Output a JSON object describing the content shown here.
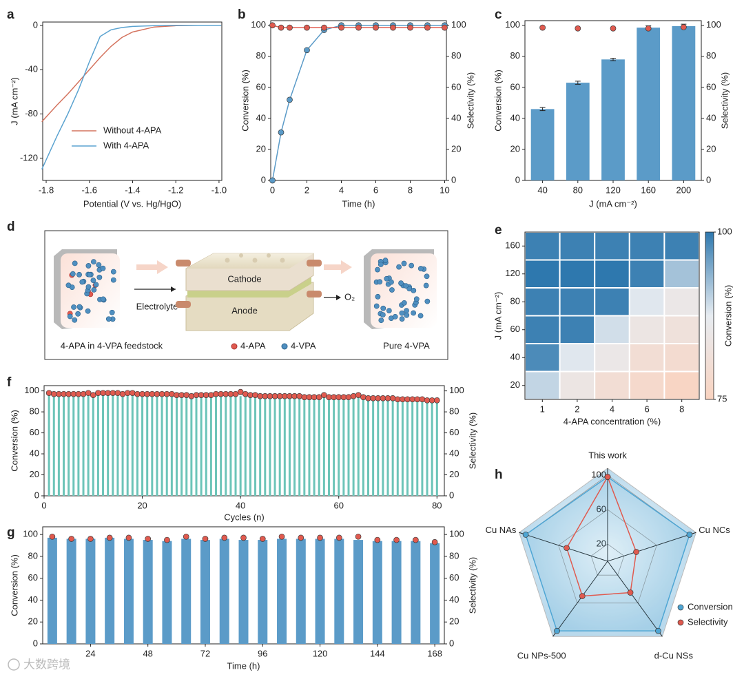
{
  "chart_data": [
    {
      "type": "line",
      "label": "a",
      "xlabel": "Potential (V vs. Hg/HgO)",
      "ylabel": "J (mA cm⁻²)",
      "x": [
        -1.82,
        -1.75,
        -1.7,
        -1.65,
        -1.6,
        -1.55,
        -1.5,
        -1.45,
        -1.4,
        -1.3,
        -1.2,
        -1.1,
        -1.0,
        -0.99
      ],
      "series": [
        {
          "name": "Without 4-APA",
          "color": "#d4735e",
          "values": [
            -87,
            -72,
            -62,
            -51,
            -40,
            -29,
            -19,
            -11,
            -6,
            -1.5,
            -0.3,
            0,
            0,
            0
          ]
        },
        {
          "name": "With 4-APA",
          "color": "#5ba3d0",
          "values": [
            -130,
            -100,
            -80,
            -58,
            -33,
            -10,
            -4,
            -2,
            -1,
            -0.3,
            0,
            0,
            0,
            0
          ]
        }
      ],
      "xlim": [
        -1.816,
        -0.987
      ],
      "xticks": [
        -1.8,
        -1.6,
        -1.4,
        -1.2,
        {
          "value": -1.0,
          "label": "-1.0"
        }
      ],
      "ylim": [
        -140,
        3
      ],
      "yticks": [
        0,
        -40,
        -80,
        -120
      ],
      "legend": "lower-center"
    },
    {
      "type": "line",
      "label": "b",
      "xlabel": "Time (h)",
      "ylabel": "Conversion (%)",
      "y2label": "Selectivity (%)",
      "x": [
        0,
        0.5,
        1,
        2,
        3,
        4,
        5,
        6,
        7,
        8,
        9,
        10
      ],
      "series": [
        {
          "color": "#5b9bc8",
          "axis": "y",
          "values": [
            0,
            31,
            52,
            84,
            97,
            100,
            100,
            100,
            100,
            100,
            100,
            100
          ]
        },
        {
          "color": "#e05a4f",
          "axis": "y2",
          "values": [
            100,
            98.5,
            98.5,
            98.5,
            98.5,
            98.5,
            98.5,
            98.5,
            98.5,
            98.5,
            98.5,
            98.5
          ]
        }
      ],
      "markers": true,
      "xlim": [
        -0.1,
        10.1
      ],
      "xticks": [
        0,
        2,
        4,
        6,
        8,
        10
      ],
      "ylim": [
        0,
        103
      ],
      "yticks": [
        0,
        20,
        40,
        60,
        80,
        100
      ],
      "y2lim": [
        0,
        103
      ],
      "y2ticks": [
        0,
        20,
        40,
        60,
        80,
        100
      ]
    },
    {
      "type": "bar",
      "label": "c",
      "xlabel": "J (mA cm⁻²)",
      "ylabel": "Conversion (%)",
      "y2label": "Selectivity (%)",
      "categories": [
        "40",
        "80",
        "120",
        "160",
        "200"
      ],
      "series": [
        {
          "kind": "bar",
          "color": "#5b9bc8",
          "axis": "y",
          "values": [
            46,
            63,
            78,
            98.5,
            99.5
          ],
          "errors": [
            1,
            1,
            0.8,
            1.2,
            1.2
          ]
        },
        {
          "kind": "scatter",
          "color": "#e05a4f",
          "axis": "y2",
          "values": [
            98.5,
            98,
            98,
            98,
            98.8
          ]
        }
      ],
      "ylim": [
        0,
        103
      ],
      "yticks": [
        0,
        20,
        40,
        60,
        80,
        100
      ],
      "y2lim": [
        0,
        103
      ],
      "y2ticks": [
        0,
        20,
        40,
        60,
        80,
        100
      ]
    },
    {
      "type": "heatmap",
      "label": "e",
      "xlabel": "4-APA concentration (%)",
      "ylabel": "J (mA cm⁻²)",
      "colorbar_label": "Conversion (%)",
      "categories": [
        "1",
        "2",
        "4",
        "6",
        "8"
      ],
      "ycategories": [
        "20",
        "40",
        "60",
        "80",
        "120",
        "160"
      ],
      "values": [
        [
          90,
          84,
          80,
          78,
          76
        ],
        [
          98,
          88,
          85,
          80,
          79
        ],
        [
          99,
          99,
          89,
          84,
          82
        ],
        [
          99,
          99,
          99,
          88,
          85
        ],
        [
          100,
          100,
          100,
          99,
          92
        ],
        [
          99,
          99,
          99,
          99,
          99
        ]
      ],
      "clim": [
        75,
        100
      ],
      "cticks": [
        75,
        100
      ],
      "colors": [
        "#f9d3c0",
        "#e7ecf1",
        "#2e78ae"
      ]
    },
    {
      "type": "bar",
      "label": "f",
      "xlabel": "Cycles (n)",
      "ylabel": "Conversion (%)",
      "y2label": "Selectivity (%)",
      "x": [
        1,
        2,
        3,
        4,
        5,
        6,
        7,
        8,
        9,
        10,
        11,
        12,
        13,
        14,
        15,
        16,
        17,
        18,
        19,
        20,
        21,
        22,
        23,
        24,
        25,
        26,
        27,
        28,
        29,
        30,
        31,
        32,
        33,
        34,
        35,
        36,
        37,
        38,
        39,
        40,
        41,
        42,
        43,
        44,
        45,
        46,
        47,
        48,
        49,
        50,
        51,
        52,
        53,
        54,
        55,
        56,
        57,
        58,
        59,
        60,
        61,
        62,
        63,
        64,
        65,
        66,
        67,
        68,
        69,
        70,
        71,
        72,
        73,
        74,
        75,
        76,
        77,
        78,
        79,
        80
      ],
      "series": [
        {
          "kind": "bar",
          "color": "#6cc4b8",
          "axis": "y",
          "values": [
            96,
            96,
            96,
            96,
            96,
            96,
            96,
            96,
            96,
            96,
            96,
            96,
            96,
            96,
            96,
            96,
            96,
            96,
            96,
            96,
            96,
            96,
            96,
            96,
            96,
            96,
            95,
            95,
            95,
            95,
            95,
            95,
            95,
            95,
            95,
            95,
            95,
            95,
            95,
            95,
            95,
            95,
            95,
            94,
            94,
            94,
            94,
            94,
            94,
            94,
            94,
            94,
            93,
            93,
            93,
            93,
            94,
            93,
            93,
            93,
            93,
            93,
            93,
            94,
            93,
            92,
            92,
            92,
            92,
            92,
            92,
            91,
            91,
            91,
            91,
            91,
            91,
            90,
            90,
            90
          ]
        },
        {
          "kind": "scatter",
          "color": "#e05a4f",
          "axis": "y2",
          "values": [
            98,
            97,
            97,
            97,
            97,
            97,
            97,
            97,
            98,
            96,
            98,
            98,
            98,
            98,
            98,
            97,
            98,
            98,
            97,
            97,
            97,
            97,
            97,
            97,
            97,
            97,
            96,
            96,
            96,
            95,
            96,
            96,
            96,
            96,
            97,
            97,
            97,
            97,
            97,
            99,
            97,
            96,
            96,
            95,
            95,
            95,
            95,
            95,
            95,
            95,
            95,
            95,
            94,
            94,
            94,
            94,
            96,
            94,
            94,
            94,
            94,
            94,
            95,
            96,
            94,
            93,
            93,
            93,
            93,
            93,
            93,
            92,
            92,
            92,
            92,
            92,
            92,
            91,
            91,
            91
          ]
        }
      ],
      "xlim": [
        0,
        81.5
      ],
      "xticks": [
        0,
        20,
        40,
        60,
        80
      ],
      "ylim": [
        0,
        105
      ],
      "yticks": [
        0,
        20,
        40,
        60,
        80,
        100
      ],
      "y2lim": [
        0,
        105
      ],
      "y2ticks": [
        0,
        20,
        40,
        60,
        80,
        100
      ]
    },
    {
      "type": "bar",
      "label": "g",
      "xlabel": "Time (h)",
      "ylabel": "Conversion (%)",
      "y2label": "Selectivity (%)",
      "x": [
        8,
        16,
        24,
        32,
        40,
        48,
        56,
        64,
        72,
        80,
        88,
        96,
        104,
        112,
        120,
        128,
        136,
        144,
        152,
        160,
        168
      ],
      "series": [
        {
          "kind": "bar",
          "color": "#5b9bc8",
          "axis": "y",
          "values": [
            97,
            96,
            96,
            97,
            96,
            95,
            94,
            96,
            95,
            96,
            95,
            95,
            96,
            96,
            96,
            96,
            95,
            94,
            94,
            94,
            92
          ]
        },
        {
          "kind": "scatter",
          "color": "#e05a4f",
          "axis": "y2",
          "values": [
            98,
            96,
            96,
            97,
            97,
            96,
            95,
            98,
            96,
            97,
            97,
            96,
            98,
            97,
            97,
            97,
            98,
            95,
            95,
            95,
            93
          ]
        }
      ],
      "xlim": [
        4,
        172
      ],
      "xticks": [
        24,
        48,
        72,
        96,
        120,
        144,
        168
      ],
      "ylim": [
        0,
        107
      ],
      "yticks": [
        0,
        20,
        40,
        60,
        80,
        100
      ],
      "y2lim": [
        0,
        107
      ],
      "y2ticks": [
        0,
        20,
        40,
        60,
        80,
        100
      ]
    },
    {
      "type": "radar",
      "label": "h",
      "categories": [
        "This work",
        "Cu NCs",
        "d-Cu NSs",
        "Cu NPs-500",
        "Cu NAs"
      ],
      "series": [
        {
          "name": "Conversion",
          "color": "#4fa6d4",
          "values": [
            98,
            100,
            100,
            100,
            100
          ]
        },
        {
          "name": "Selectivity",
          "color": "#e05a4f",
          "values": [
            98,
            35,
            45,
            50,
            50
          ]
        }
      ],
      "rlim": [
        0,
        108
      ],
      "rticks": [
        20,
        60,
        100
      ],
      "legend": "lower-right"
    }
  ],
  "diagram": {
    "label": "d",
    "cathode": "Cathode",
    "anode": "Anode",
    "electrolyte": "Electrolyte",
    "oxygen": "O₂",
    "feed_caption": "4-APA in 4-VPA feedstock",
    "legend_red": "4-APA",
    "legend_blue": "4-VPA",
    "product_caption": "Pure 4-VPA"
  },
  "watermark": "大数跨境"
}
